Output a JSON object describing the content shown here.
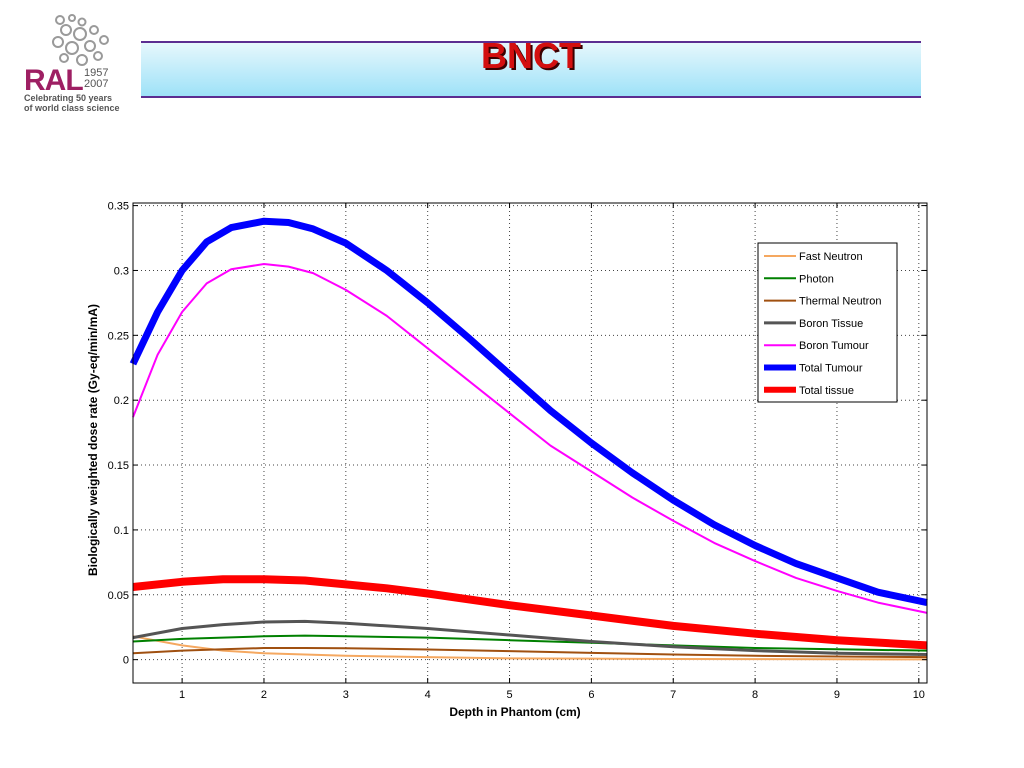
{
  "slide": {
    "title": "BNCT",
    "logo": {
      "brand": "RAL",
      "year_start": "1957",
      "year_end": "2007",
      "tagline_line1": "Celebrating 50 years",
      "tagline_line2": "of world class science"
    }
  },
  "chart_data": {
    "type": "line",
    "title": "",
    "xlabel": "Depth in Phantom (cm)",
    "ylabel": "Biologically weighted dose rate (Gy-eq/min/mA)",
    "xlim": [
      0.4,
      10.1
    ],
    "ylim": [
      -0.018,
      0.352
    ],
    "xticks": [
      1,
      2,
      3,
      4,
      5,
      6,
      7,
      8,
      9,
      10
    ],
    "xtick_labels": [
      "1",
      "2",
      "3",
      "4",
      "5",
      "6",
      "7",
      "8",
      "9",
      "10"
    ],
    "yticks": [
      0,
      0.05,
      0.1,
      0.15,
      0.2,
      0.25,
      0.3,
      0.35
    ],
    "ytick_labels": [
      "0",
      "0.05",
      "0.1",
      "0.15",
      "0.2",
      "0.25",
      "0.3",
      "0.35"
    ],
    "grid": true,
    "legend_position": "top-right",
    "series": [
      {
        "name": "Fast Neutron",
        "color": "#f5a860",
        "width": 2,
        "x": [
          0.4,
          1,
          1.5,
          2,
          3,
          4,
          5,
          6,
          7,
          8,
          9,
          10.1
        ],
        "y": [
          0.018,
          0.011,
          0.007,
          0.005,
          0.003,
          0.002,
          0.001,
          0.0008,
          0.0005,
          0.0004,
          0.0003,
          0.0002
        ]
      },
      {
        "name": "Photon",
        "color": "#008000",
        "width": 2,
        "x": [
          0.4,
          1,
          1.5,
          2,
          2.5,
          3,
          4,
          5,
          6,
          7,
          8,
          9,
          10.1
        ],
        "y": [
          0.014,
          0.016,
          0.017,
          0.018,
          0.0185,
          0.018,
          0.017,
          0.015,
          0.013,
          0.011,
          0.009,
          0.008,
          0.007
        ]
      },
      {
        "name": "Thermal Neutron",
        "color": "#a05010",
        "width": 2,
        "x": [
          0.4,
          1,
          1.5,
          2,
          2.5,
          3,
          4,
          5,
          6,
          7,
          8,
          9,
          10.1
        ],
        "y": [
          0.005,
          0.007,
          0.008,
          0.009,
          0.009,
          0.0088,
          0.0078,
          0.0066,
          0.0052,
          0.004,
          0.003,
          0.0024,
          0.002
        ]
      },
      {
        "name": "Boron Tissue",
        "color": "#555555",
        "width": 3,
        "x": [
          0.4,
          1,
          1.5,
          2,
          2.5,
          3,
          4,
          5,
          6,
          7,
          8,
          9,
          10.1
        ],
        "y": [
          0.017,
          0.024,
          0.027,
          0.029,
          0.0295,
          0.028,
          0.024,
          0.019,
          0.014,
          0.01,
          0.007,
          0.005,
          0.004
        ]
      },
      {
        "name": "Boron Tumour",
        "color": "#ff00ff",
        "width": 2,
        "x": [
          0.4,
          0.7,
          1,
          1.3,
          1.6,
          2,
          2.3,
          2.6,
          3,
          3.5,
          4,
          4.5,
          5,
          5.5,
          6,
          6.5,
          7,
          7.5,
          8,
          8.5,
          9,
          9.5,
          10.1
        ],
        "y": [
          0.187,
          0.235,
          0.268,
          0.29,
          0.301,
          0.305,
          0.303,
          0.298,
          0.285,
          0.265,
          0.24,
          0.215,
          0.19,
          0.165,
          0.145,
          0.125,
          0.107,
          0.09,
          0.076,
          0.063,
          0.053,
          0.044,
          0.036
        ]
      },
      {
        "name": "Total Tumour",
        "color": "#0000ff",
        "width": 7,
        "x": [
          0.4,
          0.7,
          1,
          1.3,
          1.6,
          2,
          2.3,
          2.6,
          3,
          3.5,
          4,
          4.5,
          5,
          5.5,
          6,
          6.5,
          7,
          7.5,
          8,
          8.5,
          9,
          9.5,
          10.1
        ],
        "y": [
          0.228,
          0.268,
          0.3,
          0.322,
          0.333,
          0.338,
          0.337,
          0.332,
          0.321,
          0.3,
          0.275,
          0.248,
          0.22,
          0.192,
          0.167,
          0.144,
          0.123,
          0.104,
          0.088,
          0.074,
          0.063,
          0.052,
          0.044
        ]
      },
      {
        "name": "Total tissue",
        "color": "#ff0000",
        "width": 8,
        "x": [
          0.4,
          1,
          1.5,
          2,
          2.5,
          3,
          3.5,
          4,
          5,
          6,
          7,
          8,
          9,
          10.1
        ],
        "y": [
          0.056,
          0.06,
          0.062,
          0.062,
          0.061,
          0.058,
          0.055,
          0.051,
          0.042,
          0.034,
          0.026,
          0.02,
          0.015,
          0.011
        ]
      }
    ]
  }
}
